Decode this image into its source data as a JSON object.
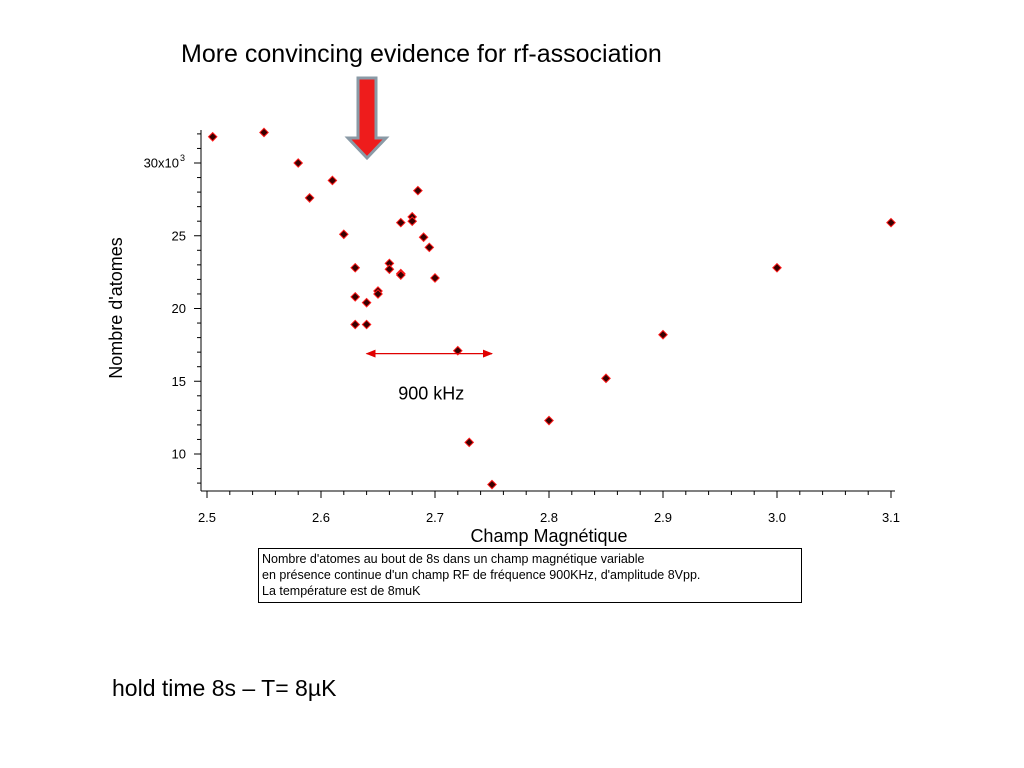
{
  "slide": {
    "title": "More convincing evidence for rf-association",
    "footer": "hold time 8s – T= 8µK",
    "caption_lines": [
      "Nombre d'atomes au bout de 8s dans un champ magnétique variable",
      "en présence continue d'un champ RF de fréquence 900KHz, d'amplitude 8Vpp.",
      "La température est de 8muK"
    ],
    "arrow_color": "#ee1c1c",
    "arrow_outline": "#8a9aa6"
  },
  "chart_data": {
    "type": "scatter",
    "xlabel": "Champ Magnétique",
    "ylabel": "Nombre d'atomes",
    "xlim": [
      2.5,
      3.1
    ],
    "ylim": [
      7.5,
      32.5
    ],
    "x_ticks": [
      "2.5",
      "2.6",
      "2.7",
      "2.8",
      "2.9",
      "3.0",
      "3.1"
    ],
    "x_tick_values": [
      2.5,
      2.6,
      2.7,
      2.8,
      2.9,
      3.0,
      3.1
    ],
    "y_ticks": [
      "10",
      "15",
      "20",
      "25"
    ],
    "y_tick_values": [
      10,
      15,
      20,
      25,
      30
    ],
    "y_top_tick_label": "30x10",
    "y_top_tick_exponent": "3",
    "marker": "diamond",
    "marker_fill": "#3a0000",
    "marker_edge": "#ff1a1a",
    "grid": false,
    "x": [
      2.505,
      2.55,
      2.58,
      2.59,
      2.61,
      2.62,
      2.63,
      2.63,
      2.63,
      2.64,
      2.64,
      2.65,
      2.65,
      2.66,
      2.66,
      2.67,
      2.67,
      2.67,
      2.68,
      2.68,
      2.685,
      2.69,
      2.695,
      2.7,
      2.72,
      2.73,
      2.75,
      2.8,
      2.85,
      2.9,
      3.0,
      3.1
    ],
    "y": [
      31.8,
      32.1,
      30.0,
      27.6,
      28.8,
      25.1,
      22.8,
      20.8,
      18.9,
      20.4,
      18.9,
      21.2,
      21.0,
      23.1,
      22.7,
      22.4,
      22.3,
      25.9,
      26.3,
      26.0,
      28.1,
      24.9,
      24.2,
      22.1,
      17.1,
      10.8,
      7.9,
      12.3,
      15.2,
      18.2,
      22.8,
      25.9
    ],
    "annotation": {
      "text": "900 kHz",
      "x_from": 2.64,
      "x_to": 2.75,
      "y": 16.9,
      "color": "#e00000"
    }
  }
}
